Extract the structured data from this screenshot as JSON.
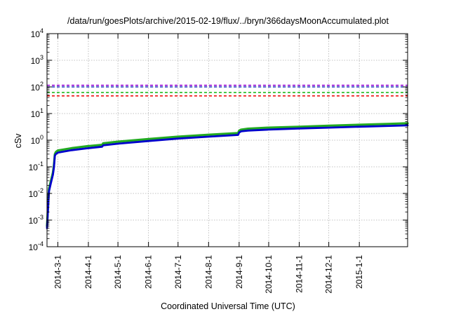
{
  "chart_data": {
    "type": "line",
    "title": "/data/run/goesPlots/archive/2015-02-19/flux/../bryn/366daysMoonAccumulated.plot",
    "xlabel": "Coordinated Universal Time (UTC)",
    "ylabel": "cSv",
    "yscale": "log",
    "ylim": [
      0.0001,
      10000
    ],
    "xlim": [
      "2014-02-18",
      "2015-02-19"
    ],
    "grid": true,
    "y_ticks": [
      {
        "base": "10",
        "exp": "-4",
        "value": 0.0001
      },
      {
        "base": "10",
        "exp": "-3",
        "value": 0.001
      },
      {
        "base": "10",
        "exp": "-2",
        "value": 0.01
      },
      {
        "base": "10",
        "exp": "-1",
        "value": 0.1
      },
      {
        "base": "10",
        "exp": "0",
        "value": 1
      },
      {
        "base": "10",
        "exp": "1",
        "value": 10
      },
      {
        "base": "10",
        "exp": "2",
        "value": 100
      },
      {
        "base": "10",
        "exp": "3",
        "value": 1000
      },
      {
        "base": "10",
        "exp": "4",
        "value": 10000
      }
    ],
    "x_ticks": [
      {
        "label": "2014-3-1",
        "date": "2014-03-01"
      },
      {
        "label": "2014-4-1",
        "date": "2014-04-01"
      },
      {
        "label": "2014-5-1",
        "date": "2014-05-01"
      },
      {
        "label": "2014-6-1",
        "date": "2014-06-01"
      },
      {
        "label": "2014-7-1",
        "date": "2014-07-01"
      },
      {
        "label": "2014-8-1",
        "date": "2014-08-01"
      },
      {
        "label": "2014-9-1",
        "date": "2014-09-01"
      },
      {
        "label": "2014-10-1",
        "date": "2014-10-01"
      },
      {
        "label": "2014-11-1",
        "date": "2014-11-01"
      },
      {
        "label": "2014-12-1",
        "date": "2014-12-01"
      },
      {
        "label": "2015-1-1",
        "date": "2015-01-01"
      }
    ],
    "reference_lines": [
      {
        "value": 115,
        "color": "#9400d3"
      },
      {
        "value": 100,
        "color": "#1f3fbf"
      },
      {
        "value": 62,
        "color": "#22bb22"
      },
      {
        "value": 46,
        "color": "#ee1111"
      }
    ],
    "series": [
      {
        "color": "#22aa22",
        "x": [
          "2014-02-18",
          "2014-02-20",
          "2014-02-22",
          "2014-02-24",
          "2014-02-25",
          "2014-02-26",
          "2014-02-27",
          "2014-03-01",
          "2014-03-15",
          "2014-04-01",
          "2014-04-15",
          "2014-04-16",
          "2014-05-01",
          "2014-06-01",
          "2014-07-01",
          "2014-08-01",
          "2014-08-31",
          "2014-09-01",
          "2014-09-03",
          "2014-09-10",
          "2014-10-01",
          "2014-11-01",
          "2014-12-01",
          "2015-01-01",
          "2015-02-01",
          "2015-02-19"
        ],
        "y": [
          0.0006,
          0.015,
          0.03,
          0.06,
          0.11,
          0.3,
          0.36,
          0.41,
          0.5,
          0.6,
          0.67,
          0.76,
          0.88,
          1.1,
          1.35,
          1.6,
          1.85,
          2.3,
          2.5,
          2.7,
          2.95,
          3.2,
          3.5,
          3.8,
          4.1,
          4.3
        ]
      },
      {
        "color": "#0000cc",
        "x": [
          "2014-02-18",
          "2014-02-20",
          "2014-02-22",
          "2014-02-24",
          "2014-02-25",
          "2014-02-26",
          "2014-02-27",
          "2014-03-01",
          "2014-03-15",
          "2014-04-01",
          "2014-04-15",
          "2014-04-16",
          "2014-05-01",
          "2014-06-01",
          "2014-07-01",
          "2014-08-01",
          "2014-08-31",
          "2014-09-01",
          "2014-09-03",
          "2014-09-10",
          "2014-10-01",
          "2014-11-01",
          "2014-12-01",
          "2015-01-01",
          "2015-02-01",
          "2015-02-19"
        ],
        "y": [
          0.0005,
          0.012,
          0.025,
          0.05,
          0.09,
          0.26,
          0.3,
          0.34,
          0.42,
          0.5,
          0.57,
          0.64,
          0.74,
          0.93,
          1.15,
          1.35,
          1.58,
          1.95,
          2.15,
          2.3,
          2.5,
          2.75,
          2.95,
          3.2,
          3.45,
          3.6
        ]
      }
    ]
  }
}
